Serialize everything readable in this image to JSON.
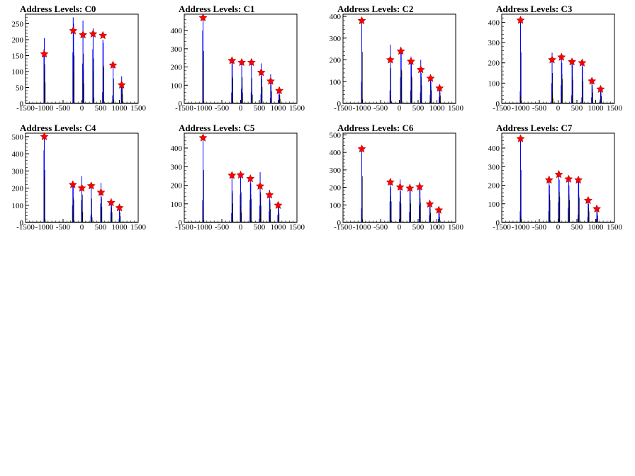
{
  "chart_data": [
    {
      "type": "bar",
      "title": "Address Levels: C0",
      "xlim": [
        -1500,
        1500
      ],
      "ylim": [
        0,
        280
      ],
      "xticks": [
        -1500,
        -1000,
        -500,
        0,
        500,
        1000,
        1500
      ],
      "xtick_labels": [
        "-1500",
        "-1000",
        "-500",
        "0",
        "500",
        "1000",
        "1500"
      ],
      "yticks": [
        0,
        50,
        100,
        150,
        200,
        250
      ],
      "ytick_labels": [
        "0",
        "50",
        "100",
        "150",
        "200",
        "250"
      ],
      "line_color": "#0000ff",
      "marker_color": "#ff0000",
      "peaks": [
        {
          "x": -1000,
          "y": 155
        },
        {
          "x": -230,
          "y": 228
        },
        {
          "x": 30,
          "y": 215
        },
        {
          "x": 300,
          "y": 218
        },
        {
          "x": 560,
          "y": 213
        },
        {
          "x": 830,
          "y": 120
        },
        {
          "x": 1060,
          "y": 58
        }
      ],
      "bars": [
        {
          "x": -1010,
          "y": 170
        },
        {
          "x": -1000,
          "y": 205
        },
        {
          "x": -990,
          "y": 110
        },
        {
          "x": -240,
          "y": 160
        },
        {
          "x": -230,
          "y": 270
        },
        {
          "x": -220,
          "y": 250
        },
        {
          "x": 20,
          "y": 125
        },
        {
          "x": 30,
          "y": 260
        },
        {
          "x": 40,
          "y": 105
        },
        {
          "x": 290,
          "y": 170
        },
        {
          "x": 300,
          "y": 235
        },
        {
          "x": 310,
          "y": 30
        },
        {
          "x": 550,
          "y": 35
        },
        {
          "x": 560,
          "y": 200
        },
        {
          "x": 570,
          "y": 190
        },
        {
          "x": 820,
          "y": 25
        },
        {
          "x": 830,
          "y": 130
        },
        {
          "x": 840,
          "y": 20
        },
        {
          "x": 1050,
          "y": 70
        },
        {
          "x": 1060,
          "y": 85
        },
        {
          "x": 1070,
          "y": 50
        }
      ]
    },
    {
      "type": "bar",
      "title": "Address Levels: C1",
      "xlim": [
        -1500,
        1500
      ],
      "ylim": [
        0,
        490
      ],
      "xticks": [
        -1500,
        -1000,
        -500,
        0,
        500,
        1000,
        1500
      ],
      "xtick_labels": [
        "-1500",
        "-1000",
        "-500",
        "0",
        "500",
        "1000",
        "1500"
      ],
      "yticks": [
        0,
        100,
        200,
        300,
        400
      ],
      "ytick_labels": [
        "0",
        "100",
        "200",
        "300",
        "400"
      ],
      "line_color": "#0000ff",
      "marker_color": "#ff0000",
      "peaks": [
        {
          "x": -1000,
          "y": 470
        },
        {
          "x": -230,
          "y": 235
        },
        {
          "x": 30,
          "y": 225
        },
        {
          "x": 290,
          "y": 225
        },
        {
          "x": 550,
          "y": 170
        },
        {
          "x": 800,
          "y": 122
        },
        {
          "x": 1030,
          "y": 70
        }
      ],
      "bars": [
        {
          "x": -1010,
          "y": 400
        },
        {
          "x": -1000,
          "y": 480
        },
        {
          "x": -990,
          "y": 20
        },
        {
          "x": -240,
          "y": 60
        },
        {
          "x": -230,
          "y": 250
        },
        {
          "x": -220,
          "y": 230
        },
        {
          "x": 20,
          "y": 80
        },
        {
          "x": 30,
          "y": 240
        },
        {
          "x": 40,
          "y": 100
        },
        {
          "x": 280,
          "y": 60
        },
        {
          "x": 290,
          "y": 230
        },
        {
          "x": 300,
          "y": 80
        },
        {
          "x": 540,
          "y": 50
        },
        {
          "x": 550,
          "y": 220
        },
        {
          "x": 560,
          "y": 150
        },
        {
          "x": 790,
          "y": 30
        },
        {
          "x": 800,
          "y": 160
        },
        {
          "x": 810,
          "y": 110
        },
        {
          "x": 1020,
          "y": 50
        },
        {
          "x": 1030,
          "y": 80
        },
        {
          "x": 1040,
          "y": 40
        }
      ]
    },
    {
      "type": "bar",
      "title": "Address Levels: C2",
      "xlim": [
        -1500,
        1500
      ],
      "ylim": [
        0,
        410
      ],
      "xticks": [
        -1500,
        -1000,
        -500,
        0,
        500,
        1000,
        1500
      ],
      "xtick_labels": [
        "-1500",
        "-1000",
        "-500",
        "0",
        "500",
        "1000",
        "1500"
      ],
      "yticks": [
        0,
        100,
        200,
        300,
        400
      ],
      "ytick_labels": [
        "0",
        "100",
        "200",
        "300",
        "400"
      ],
      "line_color": "#0000ff",
      "marker_color": "#ff0000",
      "peaks": [
        {
          "x": -1000,
          "y": 380
        },
        {
          "x": -240,
          "y": 200
        },
        {
          "x": 40,
          "y": 240
        },
        {
          "x": 310,
          "y": 193
        },
        {
          "x": 570,
          "y": 155
        },
        {
          "x": 830,
          "y": 115
        },
        {
          "x": 1070,
          "y": 70
        }
      ],
      "bars": [
        {
          "x": -1010,
          "y": 100
        },
        {
          "x": -1000,
          "y": 395
        },
        {
          "x": -990,
          "y": 30
        },
        {
          "x": -250,
          "y": 60
        },
        {
          "x": -240,
          "y": 270
        },
        {
          "x": -230,
          "y": 20
        },
        {
          "x": 30,
          "y": 120
        },
        {
          "x": 40,
          "y": 260
        },
        {
          "x": 50,
          "y": 250
        },
        {
          "x": 300,
          "y": 60
        },
        {
          "x": 310,
          "y": 215
        },
        {
          "x": 320,
          "y": 200
        },
        {
          "x": 560,
          "y": 50
        },
        {
          "x": 570,
          "y": 200
        },
        {
          "x": 580,
          "y": 140
        },
        {
          "x": 820,
          "y": 40
        },
        {
          "x": 830,
          "y": 130
        },
        {
          "x": 840,
          "y": 100
        },
        {
          "x": 1060,
          "y": 30
        },
        {
          "x": 1070,
          "y": 85
        },
        {
          "x": 1080,
          "y": 60
        }
      ]
    },
    {
      "type": "bar",
      "title": "Address Levels: C3",
      "xlim": [
        -1500,
        1500
      ],
      "ylim": [
        0,
        440
      ],
      "xticks": [
        -1500,
        -1000,
        -500,
        0,
        500,
        1000,
        1500
      ],
      "xtick_labels": [
        "-1500",
        "-1000",
        "-500",
        "0",
        "500",
        "1000",
        "1500"
      ],
      "yticks": [
        0,
        100,
        200,
        300,
        400
      ],
      "ytick_labels": [
        "0",
        "100",
        "200",
        "300",
        "400"
      ],
      "line_color": "#0000ff",
      "marker_color": "#ff0000",
      "peaks": [
        {
          "x": -1000,
          "y": 410
        },
        {
          "x": -160,
          "y": 215
        },
        {
          "x": 90,
          "y": 228
        },
        {
          "x": 370,
          "y": 205
        },
        {
          "x": 640,
          "y": 200
        },
        {
          "x": 900,
          "y": 110
        },
        {
          "x": 1130,
          "y": 70
        }
      ],
      "bars": [
        {
          "x": -1010,
          "y": 60
        },
        {
          "x": -1000,
          "y": 420
        },
        {
          "x": -990,
          "y": 20
        },
        {
          "x": -170,
          "y": 100
        },
        {
          "x": -160,
          "y": 250
        },
        {
          "x": -150,
          "y": 40
        },
        {
          "x": 80,
          "y": 90
        },
        {
          "x": 90,
          "y": 240
        },
        {
          "x": 100,
          "y": 200
        },
        {
          "x": 360,
          "y": 40
        },
        {
          "x": 370,
          "y": 220
        },
        {
          "x": 380,
          "y": 190
        },
        {
          "x": 630,
          "y": 30
        },
        {
          "x": 640,
          "y": 210
        },
        {
          "x": 650,
          "y": 180
        },
        {
          "x": 890,
          "y": 30
        },
        {
          "x": 900,
          "y": 120
        },
        {
          "x": 910,
          "y": 90
        },
        {
          "x": 1120,
          "y": 20
        },
        {
          "x": 1130,
          "y": 80
        },
        {
          "x": 1140,
          "y": 60
        }
      ]
    },
    {
      "type": "bar",
      "title": "Address Levels: C4",
      "xlim": [
        -1500,
        1500
      ],
      "ylim": [
        0,
        520
      ],
      "xticks": [
        -1500,
        -1000,
        -500,
        0,
        500,
        1000,
        1500
      ],
      "xtick_labels": [
        "-1500",
        "-1000",
        "-500",
        "0",
        "500",
        "1000",
        "1500"
      ],
      "yticks": [
        0,
        100,
        200,
        300,
        400,
        500
      ],
      "ytick_labels": [
        "0",
        "100",
        "200",
        "300",
        "400",
        "500"
      ],
      "line_color": "#0000ff",
      "marker_color": "#ff0000",
      "peaks": [
        {
          "x": -1000,
          "y": 500
        },
        {
          "x": -240,
          "y": 220
        },
        {
          "x": 0,
          "y": 200
        },
        {
          "x": 250,
          "y": 213
        },
        {
          "x": 510,
          "y": 175
        },
        {
          "x": 780,
          "y": 115
        },
        {
          "x": 1000,
          "y": 85
        }
      ],
      "bars": [
        {
          "x": -1010,
          "y": 420
        },
        {
          "x": -1000,
          "y": 510
        },
        {
          "x": -990,
          "y": 30
        },
        {
          "x": -250,
          "y": 100
        },
        {
          "x": -240,
          "y": 240
        },
        {
          "x": -230,
          "y": 220
        },
        {
          "x": -10,
          "y": 130
        },
        {
          "x": 0,
          "y": 270
        },
        {
          "x": 10,
          "y": 100
        },
        {
          "x": 240,
          "y": 40
        },
        {
          "x": 250,
          "y": 230
        },
        {
          "x": 260,
          "y": 50
        },
        {
          "x": 500,
          "y": 110
        },
        {
          "x": 510,
          "y": 230
        },
        {
          "x": 520,
          "y": 150
        },
        {
          "x": 770,
          "y": 60
        },
        {
          "x": 780,
          "y": 140
        },
        {
          "x": 790,
          "y": 100
        },
        {
          "x": 990,
          "y": 20
        },
        {
          "x": 1000,
          "y": 90
        },
        {
          "x": 1010,
          "y": 60
        }
      ]
    },
    {
      "type": "bar",
      "title": "Address Levels: C5",
      "xlim": [
        -1500,
        1500
      ],
      "ylim": [
        0,
        480
      ],
      "xticks": [
        -1500,
        -1000,
        -500,
        0,
        500,
        1000,
        1500
      ],
      "xtick_labels": [
        "-1500",
        "-1000",
        "-500",
        "0",
        "500",
        "1000",
        "1500"
      ],
      "yticks": [
        0,
        100,
        200,
        300,
        400
      ],
      "ytick_labels": [
        "0",
        "100",
        "200",
        "300",
        "400"
      ],
      "line_color": "#0000ff",
      "marker_color": "#ff0000",
      "peaks": [
        {
          "x": -1000,
          "y": 455
        },
        {
          "x": -230,
          "y": 253
        },
        {
          "x": 0,
          "y": 255
        },
        {
          "x": 260,
          "y": 235
        },
        {
          "x": 520,
          "y": 195
        },
        {
          "x": 770,
          "y": 148
        },
        {
          "x": 1000,
          "y": 92
        }
      ],
      "bars": [
        {
          "x": -1010,
          "y": 120
        },
        {
          "x": -1000,
          "y": 470
        },
        {
          "x": -990,
          "y": 20
        },
        {
          "x": -240,
          "y": 50
        },
        {
          "x": -230,
          "y": 260
        },
        {
          "x": -220,
          "y": 170
        },
        {
          "x": -10,
          "y": 150
        },
        {
          "x": 0,
          "y": 270
        },
        {
          "x": 10,
          "y": 90
        },
        {
          "x": 250,
          "y": 120
        },
        {
          "x": 260,
          "y": 250
        },
        {
          "x": 270,
          "y": 210
        },
        {
          "x": 510,
          "y": 90
        },
        {
          "x": 520,
          "y": 270
        },
        {
          "x": 530,
          "y": 150
        },
        {
          "x": 760,
          "y": 60
        },
        {
          "x": 770,
          "y": 175
        },
        {
          "x": 780,
          "y": 120
        },
        {
          "x": 990,
          "y": 40
        },
        {
          "x": 1000,
          "y": 110
        },
        {
          "x": 1010,
          "y": 80
        }
      ]
    },
    {
      "type": "bar",
      "title": "Address Levels: C6",
      "xlim": [
        -1500,
        1500
      ],
      "ylim": [
        0,
        510
      ],
      "xticks": [
        -1500,
        -1000,
        -500,
        0,
        500,
        1000,
        1500
      ],
      "xtick_labels": [
        "-1500",
        "-1000",
        "-500",
        "0",
        "500",
        "1000",
        "1500"
      ],
      "yticks": [
        0,
        100,
        200,
        300,
        400,
        500
      ],
      "ytick_labels": [
        "0",
        "100",
        "200",
        "300",
        "400",
        "500"
      ],
      "line_color": "#0000ff",
      "marker_color": "#ff0000",
      "peaks": [
        {
          "x": -1000,
          "y": 420
        },
        {
          "x": -240,
          "y": 230
        },
        {
          "x": 20,
          "y": 202
        },
        {
          "x": 280,
          "y": 195
        },
        {
          "x": 540,
          "y": 203
        },
        {
          "x": 810,
          "y": 105
        },
        {
          "x": 1050,
          "y": 70
        }
      ],
      "bars": [
        {
          "x": -1010,
          "y": 80
        },
        {
          "x": -1000,
          "y": 440
        },
        {
          "x": -990,
          "y": 30
        },
        {
          "x": -250,
          "y": 120
        },
        {
          "x": -240,
          "y": 250
        },
        {
          "x": -230,
          "y": 200
        },
        {
          "x": 10,
          "y": 120
        },
        {
          "x": 20,
          "y": 245
        },
        {
          "x": 30,
          "y": 180
        },
        {
          "x": 270,
          "y": 60
        },
        {
          "x": 280,
          "y": 220
        },
        {
          "x": 290,
          "y": 180
        },
        {
          "x": 530,
          "y": 100
        },
        {
          "x": 540,
          "y": 230
        },
        {
          "x": 550,
          "y": 190
        },
        {
          "x": 800,
          "y": 40
        },
        {
          "x": 810,
          "y": 130
        },
        {
          "x": 820,
          "y": 90
        },
        {
          "x": 1040,
          "y": 20
        },
        {
          "x": 1050,
          "y": 90
        },
        {
          "x": 1060,
          "y": 50
        }
      ]
    },
    {
      "type": "bar",
      "title": "Address Levels: C7",
      "xlim": [
        -1500,
        1500
      ],
      "ylim": [
        0,
        480
      ],
      "xticks": [
        -1500,
        -1000,
        -500,
        0,
        500,
        1000,
        1500
      ],
      "xtick_labels": [
        "-1500",
        "-1000",
        "-500",
        "0",
        "500",
        "1000",
        "1500"
      ],
      "yticks": [
        0,
        100,
        200,
        300,
        400
      ],
      "ytick_labels": [
        "0",
        "100",
        "200",
        "300",
        "400"
      ],
      "line_color": "#0000ff",
      "marker_color": "#ff0000",
      "peaks": [
        {
          "x": -1000,
          "y": 450
        },
        {
          "x": -240,
          "y": 228
        },
        {
          "x": 20,
          "y": 258
        },
        {
          "x": 280,
          "y": 233
        },
        {
          "x": 540,
          "y": 228
        },
        {
          "x": 800,
          "y": 118
        },
        {
          "x": 1030,
          "y": 73
        }
      ],
      "bars": [
        {
          "x": -1010,
          "y": 60
        },
        {
          "x": -1000,
          "y": 470
        },
        {
          "x": -990,
          "y": 30
        },
        {
          "x": -250,
          "y": 60
        },
        {
          "x": -240,
          "y": 250
        },
        {
          "x": -230,
          "y": 200
        },
        {
          "x": 10,
          "y": 110
        },
        {
          "x": 20,
          "y": 275
        },
        {
          "x": 30,
          "y": 230
        },
        {
          "x": 270,
          "y": 80
        },
        {
          "x": 280,
          "y": 250
        },
        {
          "x": 290,
          "y": 200
        },
        {
          "x": 530,
          "y": 40
        },
        {
          "x": 540,
          "y": 245
        },
        {
          "x": 550,
          "y": 220
        },
        {
          "x": 790,
          "y": 30
        },
        {
          "x": 800,
          "y": 130
        },
        {
          "x": 810,
          "y": 100
        },
        {
          "x": 1020,
          "y": 20
        },
        {
          "x": 1030,
          "y": 85
        },
        {
          "x": 1040,
          "y": 60
        }
      ]
    }
  ]
}
